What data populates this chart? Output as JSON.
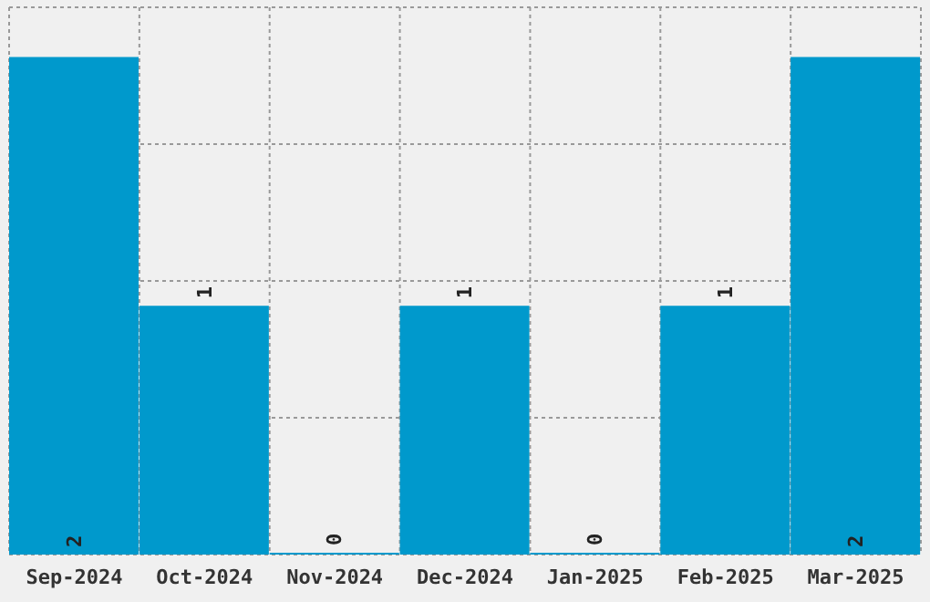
{
  "chart_data": {
    "type": "bar",
    "categories": [
      "Sep-2024",
      "Oct-2024",
      "Nov-2024",
      "Dec-2024",
      "Jan-2025",
      "Feb-2025",
      "Mar-2025"
    ],
    "values": [
      2,
      1,
      0,
      1,
      0,
      1,
      2
    ],
    "color": "#0099cc",
    "data_labels": true,
    "grid": true,
    "ylim": [
      0,
      2.2
    ],
    "yticks": [
      {
        "value": 0,
        "label": null
      },
      {
        "value": 0.55,
        "label": null
      },
      {
        "value": 1.1,
        "label": null
      },
      {
        "value": 1.65,
        "label": null
      },
      {
        "value": 2.2,
        "label": null
      }
    ],
    "tick_labels": "x"
  }
}
